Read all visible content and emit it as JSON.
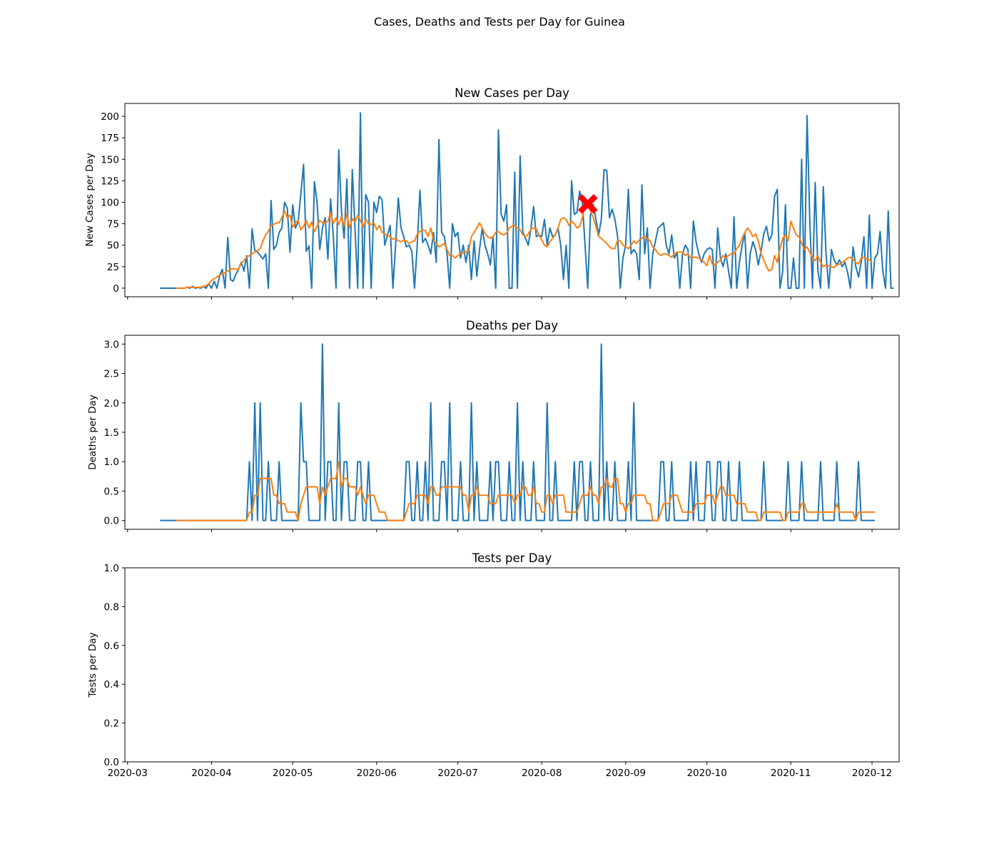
{
  "figure_title": "Cases, Deaths and Tests per Day for Guinea",
  "colors": {
    "raw": "#1f77b4",
    "avg": "#ff7f0e",
    "marker": "#ff0000"
  },
  "chart_data": [
    {
      "type": "line",
      "title": "New Cases per Day",
      "xlabel": "",
      "ylabel": "New Cases per Day",
      "x_range": [
        "2020-02-29",
        "2020-12-11"
      ],
      "ylim": [
        -10,
        215
      ],
      "yticks": [
        0,
        25,
        50,
        75,
        100,
        125,
        150,
        175,
        200
      ],
      "ytick_labels": [
        "0",
        "25",
        "50",
        "75",
        "100",
        "125",
        "150",
        "175",
        "200"
      ],
      "raw_start": "2020-03-13",
      "raw_values": [
        0,
        0,
        0,
        0,
        0,
        0,
        0,
        0,
        0,
        0,
        1,
        0,
        2,
        0,
        1,
        0,
        2,
        0,
        5,
        0,
        8,
        0,
        15,
        22,
        0,
        59,
        10,
        8,
        16,
        22,
        30,
        20,
        38,
        0,
        69,
        44,
        42,
        38,
        34,
        40,
        0,
        102,
        45,
        50,
        65,
        70,
        100,
        93,
        42,
        97,
        70,
        77,
        110,
        144,
        43,
        49,
        0,
        124,
        100,
        45,
        70,
        82,
        34,
        104,
        60,
        0,
        161,
        90,
        58,
        127,
        0,
        138,
        70,
        0,
        204,
        0,
        109,
        100,
        0,
        100,
        88,
        107,
        103,
        50,
        62,
        73,
        0,
        50,
        105,
        70,
        60,
        48,
        50,
        43,
        0,
        50,
        114,
        53,
        58,
        50,
        40,
        65,
        30,
        173,
        65,
        60,
        40,
        0,
        75,
        60,
        65,
        35,
        50,
        30,
        50,
        10,
        55,
        14,
        45,
        70,
        50,
        40,
        27,
        60,
        0,
        184,
        86,
        78,
        97,
        0,
        0,
        135,
        0,
        154,
        65,
        58,
        50,
        70,
        95,
        60,
        62,
        60,
        80,
        50,
        70,
        60,
        62,
        70,
        50,
        10,
        50,
        0,
        125,
        86,
        88,
        113,
        100,
        50,
        0,
        86,
        98,
        80,
        62,
        80,
        138,
        137,
        82,
        92,
        80,
        60,
        0,
        35,
        50,
        115,
        40,
        45,
        40,
        10,
        120,
        40,
        70,
        0,
        40,
        55,
        70,
        73,
        76,
        50,
        40,
        62,
        35,
        42,
        0,
        40,
        50,
        45,
        0,
        78,
        54,
        40,
        30,
        40,
        45,
        47,
        45,
        0,
        70,
        35,
        25,
        40,
        20,
        0,
        83,
        0,
        30,
        50,
        63,
        0,
        40,
        54,
        45,
        27,
        43,
        63,
        72,
        55,
        62,
        107,
        115,
        0,
        20,
        97,
        0,
        0,
        35,
        0,
        0,
        150,
        0,
        201,
        80,
        0,
        123,
        20,
        0,
        118,
        40,
        0,
        45,
        33,
        27,
        33,
        25,
        30,
        18,
        0,
        48,
        25,
        13,
        30,
        60,
        0,
        85,
        0,
        35,
        40,
        66,
        20,
        0,
        90,
        0,
        0
      ],
      "avg_start": "2020-03-19",
      "avg_values": [
        0,
        0,
        0,
        0,
        1,
        1,
        1,
        1,
        1,
        1,
        2,
        3,
        5,
        9,
        11,
        13,
        15,
        17,
        18,
        20,
        22,
        23,
        22,
        22,
        29,
        32,
        36,
        38,
        40,
        42,
        44,
        46,
        55,
        62,
        66,
        73,
        74,
        76,
        76,
        82,
        90,
        82,
        85,
        71,
        76,
        79,
        68,
        72,
        79,
        70,
        77,
        66,
        72,
        79,
        76,
        76,
        78,
        88,
        75,
        82,
        74,
        83,
        72,
        87,
        70,
        81,
        77,
        85,
        79,
        71,
        80,
        75,
        74,
        76,
        68,
        73,
        65,
        63,
        61,
        60,
        57,
        58,
        55,
        54,
        56,
        55,
        52,
        54,
        55,
        63,
        66,
        68,
        67,
        60,
        70,
        56,
        52,
        48,
        50,
        52,
        45,
        38,
        38,
        35,
        38,
        40,
        41,
        42,
        44,
        60,
        65,
        70,
        76,
        70,
        64,
        60,
        58,
        60,
        65,
        66,
        63,
        62,
        64,
        70,
        72,
        73,
        70,
        68,
        62,
        60,
        63,
        69,
        70,
        69,
        62,
        56,
        50,
        48,
        54,
        58,
        62,
        70,
        80,
        82,
        80,
        73,
        78,
        75,
        70,
        72,
        82,
        100,
        96,
        90,
        82,
        72,
        60,
        58,
        55,
        52,
        48,
        46,
        46,
        56,
        55,
        50,
        48,
        46,
        50,
        55,
        52,
        56,
        58,
        60,
        58,
        55,
        48,
        45,
        40,
        38,
        40,
        40,
        38,
        36,
        40,
        42,
        42,
        42,
        38,
        40,
        35,
        36,
        36,
        35,
        33,
        30,
        26,
        38,
        28,
        27,
        30,
        33,
        38,
        35,
        38,
        40,
        40,
        46,
        50,
        58,
        65,
        70,
        66,
        60,
        63,
        55,
        40,
        33,
        25,
        20,
        22,
        38,
        30,
        46,
        58,
        62,
        55,
        78,
        70,
        62,
        60,
        52,
        45,
        48,
        42,
        35,
        32,
        38,
        30,
        25,
        27,
        26,
        25,
        24,
        27,
        28,
        30,
        32,
        35,
        36,
        33,
        30,
        28,
        35,
        36,
        34,
        33,
        30
      ],
      "annotation": {
        "date": "2020-08-18",
        "value": 98,
        "marker": "X"
      }
    },
    {
      "type": "line",
      "title": "Deaths per Day",
      "xlabel": "",
      "ylabel": "Deaths per Day",
      "x_range": [
        "2020-02-29",
        "2020-12-11"
      ],
      "ylim": [
        -0.15,
        3.15
      ],
      "yticks": [
        0,
        0.5,
        1,
        1.5,
        2,
        2.5,
        3
      ],
      "ytick_labels": [
        "0.0",
        "0.5",
        "1.0",
        "1.5",
        "2.0",
        "2.5",
        "3.0"
      ],
      "raw_start": "2020-03-13",
      "raw_events": [
        [
          "2020-04-15",
          1
        ],
        [
          "2020-04-17",
          2
        ],
        [
          "2020-04-19",
          2
        ],
        [
          "2020-04-22",
          1
        ],
        [
          "2020-04-26",
          1
        ],
        [
          "2020-05-04",
          2
        ],
        [
          "2020-05-05",
          1
        ],
        [
          "2020-05-06",
          1
        ],
        [
          "2020-05-12",
          3
        ],
        [
          "2020-05-14",
          1
        ],
        [
          "2020-05-15",
          1
        ],
        [
          "2020-05-18",
          2
        ],
        [
          "2020-05-20",
          1
        ],
        [
          "2020-05-21",
          1
        ],
        [
          "2020-05-25",
          1
        ],
        [
          "2020-05-26",
          1
        ],
        [
          "2020-05-29",
          1
        ],
        [
          "2020-06-12",
          1
        ],
        [
          "2020-06-13",
          1
        ],
        [
          "2020-06-16",
          1
        ],
        [
          "2020-06-19",
          1
        ],
        [
          "2020-06-21",
          2
        ],
        [
          "2020-06-25",
          1
        ],
        [
          "2020-06-26",
          1
        ],
        [
          "2020-06-28",
          2
        ],
        [
          "2020-07-02",
          1
        ],
        [
          "2020-07-06",
          2
        ],
        [
          "2020-07-08",
          1
        ],
        [
          "2020-07-13",
          1
        ],
        [
          "2020-07-15",
          1
        ],
        [
          "2020-07-16",
          1
        ],
        [
          "2020-07-20",
          1
        ],
        [
          "2020-07-23",
          2
        ],
        [
          "2020-07-25",
          1
        ],
        [
          "2020-07-29",
          1
        ],
        [
          "2020-08-03",
          2
        ],
        [
          "2020-08-06",
          1
        ],
        [
          "2020-08-13",
          1
        ],
        [
          "2020-08-15",
          1
        ],
        [
          "2020-08-16",
          1
        ],
        [
          "2020-08-19",
          1
        ],
        [
          "2020-08-23",
          3
        ],
        [
          "2020-08-25",
          1
        ],
        [
          "2020-08-28",
          1
        ],
        [
          "2020-09-02",
          1
        ],
        [
          "2020-09-04",
          2
        ],
        [
          "2020-09-14",
          1
        ],
        [
          "2020-09-15",
          1
        ],
        [
          "2020-09-18",
          1
        ],
        [
          "2020-09-25",
          1
        ],
        [
          "2020-09-27",
          1
        ],
        [
          "2020-10-01",
          1
        ],
        [
          "2020-10-02",
          1
        ],
        [
          "2020-10-05",
          1
        ],
        [
          "2020-10-06",
          1
        ],
        [
          "2020-10-09",
          1
        ],
        [
          "2020-10-13",
          1
        ],
        [
          "2020-10-22",
          1
        ],
        [
          "2020-10-31",
          1
        ],
        [
          "2020-11-05",
          1
        ],
        [
          "2020-11-12",
          1
        ],
        [
          "2020-11-18",
          1
        ],
        [
          "2020-11-26",
          1
        ]
      ],
      "raw_end": "2020-12-02",
      "avg_start": "2020-03-19",
      "avg_end": "2020-12-02"
    },
    {
      "type": "line",
      "title": "Tests per Day",
      "xlabel": "",
      "ylabel": "Tests per Day",
      "x_range": [
        "2020-02-29",
        "2020-12-11"
      ],
      "ylim": [
        0,
        1
      ],
      "yticks": [
        0,
        0.2,
        0.4,
        0.6,
        0.8,
        1
      ],
      "ytick_labels": [
        "0.0",
        "0.2",
        "0.4",
        "0.6",
        "0.8",
        "1.0"
      ],
      "xticks": [
        "2020-03-01",
        "2020-04-01",
        "2020-05-01",
        "2020-06-01",
        "2020-07-01",
        "2020-08-01",
        "2020-09-01",
        "2020-10-01",
        "2020-11-01",
        "2020-12-01"
      ],
      "xtick_labels": [
        "2020-03",
        "2020-04",
        "2020-05",
        "2020-06",
        "2020-07",
        "2020-08",
        "2020-09",
        "2020-10",
        "2020-11",
        "2020-12"
      ],
      "series": []
    }
  ]
}
